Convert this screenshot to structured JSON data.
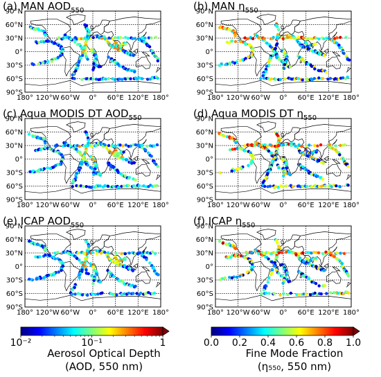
{
  "panels": [
    {
      "label": "(a) MAN AOD",
      "sub": "550",
      "variable": "aod",
      "seed": 11
    },
    {
      "label": "(b) MAN  η",
      "sub": "550",
      "variable": "fmf",
      "seed": 23
    },
    {
      "label": "(c) Aqua MODIS DT AOD",
      "sub": "550",
      "variable": "aod",
      "seed": 37
    },
    {
      "label": "(d) Aqua MODIS DT  η",
      "sub": "550",
      "variable": "fmf",
      "seed": 41
    },
    {
      "label": "(e) ICAP AOD",
      "sub": "550",
      "variable": "aod",
      "seed": 53
    },
    {
      "label": "(f) ICAP  η",
      "sub": "550",
      "variable": "fmf",
      "seed": 67
    }
  ],
  "lat_ticks": [
    "90°N",
    "60°N",
    "30°N",
    "0°",
    "30°S",
    "60°S",
    "90°S"
  ],
  "lon_ticks": [
    "180°",
    "120°W",
    "60°W",
    "0°",
    "60°E",
    "120°E",
    "180°"
  ],
  "colorbars": [
    {
      "name": "aod-colorbar",
      "tick_labels": [
        "10⁻²",
        "10⁻¹",
        "1"
      ],
      "title_line1": "Aerosol Optical Depth",
      "title_line2": "(AOD, 550 nm)",
      "scale": "log",
      "range": [
        0.01,
        1
      ]
    },
    {
      "name": "fmf-colorbar",
      "tick_labels": [
        "0.0",
        "0.2",
        "0.4",
        "0.6",
        "0.8",
        "1.0"
      ],
      "title_line1": "Fine Mode Fraction",
      "title_line2": "(η₅₅₀, 550 nm)",
      "scale": "linear",
      "range": [
        0,
        1
      ]
    }
  ],
  "colors": {
    "jet": [
      "#00007f",
      "#0000ff",
      "#007fff",
      "#00ffff",
      "#7fff7f",
      "#ffff00",
      "#ff7f00",
      "#ff0000",
      "#7f0000"
    ],
    "gridline": "#000000",
    "coastline": "#000000"
  }
}
